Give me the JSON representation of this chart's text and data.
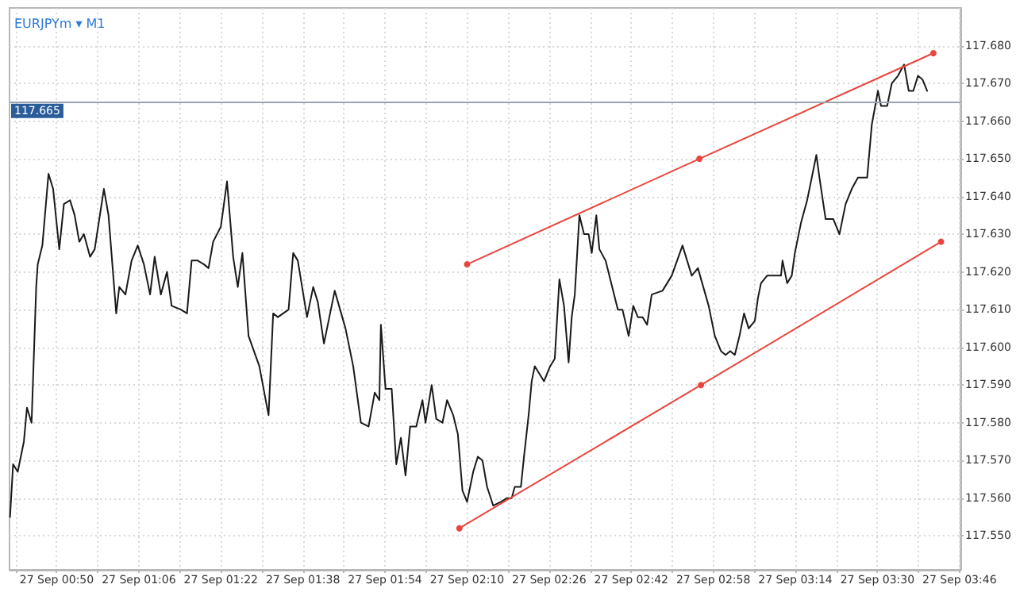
{
  "chart_data": {
    "type": "line",
    "title": "EURJPYm ▾ M1",
    "series": [
      {
        "color": "#1a1a1a",
        "marker": "none",
        "x": [
          "--09-27T00:40:54",
          "--09-27T00:41:30",
          "--09-27T00:42:24",
          "--09-27T00:43:36",
          "--09-27T00:44:12",
          "--09-27T00:45:06",
          "--09-27T00:46:00",
          "--09-27T00:46:18",
          "--09-27T00:47:12",
          "--09-27T00:48:24",
          "--09-27T00:49:18",
          "--09-27T00:50:30",
          "--09-27T00:51:24",
          "--09-27T00:52:36",
          "--09-27T00:53:30",
          "--09-27T00:54:24",
          "--09-27T00:55:18",
          "--09-27T00:56:30",
          "--09-27T00:57:24",
          "--09-27T00:59:12",
          "--09-27T01:00:06",
          "--09-27T01:01:36",
          "--09-27T01:02:12",
          "--09-27T01:03:24",
          "--09-27T01:04:36",
          "--09-27T01:05:48",
          "--09-27T01:07:00",
          "--09-27T01:08:12",
          "--09-27T01:09:06",
          "--09-27T01:10:18",
          "--09-27T01:11:30",
          "--09-27T01:12:24",
          "--09-27T01:14:12",
          "--09-27T01:15:24",
          "--09-27T01:16:18",
          "--09-27T01:17:30",
          "--09-27T01:18:42",
          "--09-27T01:19:36",
          "--09-27T01:20:30",
          "--09-27T01:22:00",
          "--09-27T01:23:12",
          "--09-27T01:24:24",
          "--09-27T01:25:18",
          "--09-27T01:26:12",
          "--09-27T01:27:24",
          "--09-27T01:29:30",
          "--09-27T01:31:18",
          "--09-27T01:32:12",
          "--09-27T01:33:06",
          "--09-27T01:35:12",
          "--09-27T01:36:06",
          "--09-27T01:37:00",
          "--09-27T01:38:48",
          "--09-27T01:40:00",
          "--09-27T01:40:54",
          "--09-27T01:42:06",
          "--09-27T01:44:12",
          "--09-27T01:46:18",
          "--09-27T01:47:48",
          "--09-27T01:49:18",
          "--09-27T01:50:48",
          "--09-27T01:52:00",
          "--09-27T01:52:54",
          "--09-27T01:53:12",
          "--09-27T01:54:06",
          "--09-27T01:55:18",
          "--09-27T01:56:12",
          "--09-27T01:57:06",
          "--09-27T01:58:00",
          "--09-27T01:58:54",
          "--09-27T02:00:06",
          "--09-27T02:01:18",
          "--09-27T02:01:54",
          "--09-27T02:03:06",
          "--09-27T02:04:00",
          "--09-27T02:05:12",
          "--09-27T02:06:06",
          "--09-27T02:07:18",
          "--09-27T02:08:12",
          "--09-27T02:09:06",
          "--09-27T02:10:00",
          "--09-27T02:11:12",
          "--09-27T02:12:06",
          "--09-27T02:13:00",
          "--09-27T02:13:54",
          "--09-27T02:15:06",
          "--09-27T02:16:36",
          "--09-27T02:17:48",
          "--09-27T02:18:42",
          "--09-27T02:19:18",
          "--09-27T02:20:30",
          "--09-27T02:21:06",
          "--09-27T02:22:00",
          "--09-27T02:22:36",
          "--09-27T02:23:12",
          "--09-27T02:25:00",
          "--09-27T02:26:12",
          "--09-27T02:27:06",
          "--09-27T02:28:00",
          "--09-27T02:28:54",
          "--09-27T02:29:48",
          "--09-27T02:30:24",
          "--09-27T02:31:00",
          "--09-27T02:31:54",
          "--09-27T02:32:48",
          "--09-27T02:33:42",
          "--09-27T02:34:18",
          "--09-27T02:35:12",
          "--09-27T02:35:48",
          "--09-27T02:37:00",
          "--09-27T02:39:24",
          "--09-27T02:40:18",
          "--09-27T02:41:30",
          "--09-27T02:42:24",
          "--09-27T02:43:18",
          "--09-27T02:44:12",
          "--09-27T02:45:06",
          "--09-27T02:46:00",
          "--09-27T02:48:06",
          "--09-27T02:49:54",
          "--09-27T02:52:00",
          "--09-27T02:53:48",
          "--09-27T02:55:00",
          "--09-27T02:57:06",
          "--09-27T02:58:18",
          "--09-27T02:59:30",
          "--09-27T03:00:24",
          "--09-27T03:01:18",
          "--09-27T03:02:12",
          "--09-27T03:03:06",
          "--09-27T03:04:00",
          "--09-27T03:04:54",
          "--09-27T03:06:06",
          "--09-27T03:06:42",
          "--09-27T03:07:18",
          "--09-27T03:08:30",
          "--09-27T03:10:00",
          "--09-27T03:11:12",
          "--09-27T03:11:30",
          "--09-27T03:12:24",
          "--09-27T03:13:18",
          "--09-27T03:13:54",
          "--09-27T03:15:06",
          "--09-27T03:16:18",
          "--09-27T03:18:06",
          "--09-27T03:18:42",
          "--09-27T03:19:54",
          "--09-27T03:21:24",
          "--09-27T03:22:36",
          "--09-27T03:23:48",
          "--09-27T03:25:00",
          "--09-27T03:26:12",
          "--09-27T03:28:00",
          "--09-27T03:28:54",
          "--09-27T03:30:06",
          "--09-27T03:30:42",
          "--09-27T03:31:54",
          "--09-27T03:32:48",
          "--09-27T03:34:00",
          "--09-27T03:35:12",
          "--09-27T03:36:06",
          "--09-27T03:37:00",
          "--09-27T03:37:54",
          "--09-27T03:38:48",
          "--09-27T03:39:42"
        ],
        "values": [
          117.555,
          117.569,
          117.567,
          117.575,
          117.584,
          117.58,
          117.616,
          117.622,
          117.627,
          117.646,
          117.642,
          117.626,
          117.638,
          117.639,
          117.635,
          117.628,
          117.63,
          117.624,
          117.626,
          117.642,
          117.635,
          117.609,
          117.616,
          117.614,
          117.623,
          117.627,
          117.622,
          117.614,
          117.624,
          117.614,
          117.62,
          117.611,
          117.61,
          117.609,
          117.623,
          117.623,
          117.622,
          117.621,
          117.628,
          117.632,
          117.644,
          117.624,
          117.616,
          117.625,
          117.603,
          117.595,
          117.582,
          117.609,
          117.608,
          117.61,
          117.625,
          117.623,
          117.608,
          117.616,
          117.612,
          117.601,
          117.615,
          117.605,
          117.595,
          117.58,
          117.579,
          117.588,
          117.586,
          117.606,
          117.589,
          117.589,
          117.569,
          117.576,
          117.566,
          117.579,
          117.579,
          117.586,
          117.58,
          117.59,
          117.581,
          117.58,
          117.586,
          117.582,
          117.577,
          117.562,
          117.559,
          117.567,
          117.571,
          117.57,
          117.563,
          117.558,
          117.559,
          117.56,
          117.56,
          117.563,
          117.563,
          117.571,
          117.582,
          117.591,
          117.595,
          117.591,
          117.595,
          117.597,
          117.618,
          117.611,
          117.596,
          117.608,
          117.614,
          117.635,
          117.63,
          117.63,
          117.625,
          117.635,
          117.626,
          117.623,
          117.61,
          117.61,
          117.603,
          117.611,
          117.608,
          117.608,
          117.606,
          117.614,
          117.615,
          117.619,
          117.627,
          117.619,
          117.621,
          117.611,
          117.603,
          117.599,
          117.598,
          117.599,
          117.598,
          117.603,
          117.609,
          117.605,
          117.607,
          117.613,
          117.617,
          117.619,
          117.619,
          117.619,
          117.623,
          117.617,
          117.619,
          117.625,
          117.633,
          117.639,
          117.651,
          117.645,
          117.634,
          117.634,
          117.63,
          117.638,
          117.642,
          117.645,
          117.645,
          117.659,
          117.668,
          117.664,
          117.664,
          117.67,
          117.672,
          117.675,
          117.668,
          117.668,
          117.672,
          117.671,
          117.668
        ]
      },
      {
        "color": "#e8453c",
        "marker": "circle",
        "x": [
          "--09-27T02:10:00",
          "--09-27T02:55:18",
          "--09-27T03:40:54"
        ],
        "values": [
          117.622,
          117.65,
          117.678
        ]
      },
      {
        "color": "#e8453c",
        "marker": "circle",
        "x": [
          "--09-27T02:08:30",
          "--09-27T02:55:36",
          "--09-27T03:42:24"
        ],
        "values": [
          117.552,
          117.59,
          117.628
        ]
      }
    ],
    "xlim": [
      "--09-27T00:40:48",
      "--09-27T03:46:12"
    ],
    "xticks": [
      {
        "value": "--09-27T00:42",
        "label": null
      },
      {
        "value": "--09-27T00:50",
        "label": "27 Sep 00:50"
      },
      {
        "value": "--09-27T00:58",
        "label": null
      },
      {
        "value": "--09-27T01:06",
        "label": "27 Sep 01:06"
      },
      {
        "value": "--09-27T01:14",
        "label": null
      },
      {
        "value": "--09-27T01:22",
        "label": "27 Sep 01:22"
      },
      {
        "value": "--09-27T01:30",
        "label": null
      },
      {
        "value": "--09-27T01:38",
        "label": "27 Sep 01:38"
      },
      {
        "value": "--09-27T01:46",
        "label": null
      },
      {
        "value": "--09-27T01:54",
        "label": "27 Sep 01:54"
      },
      {
        "value": "--09-27T02:02",
        "label": null
      },
      {
        "value": "--09-27T02:10",
        "label": "27 Sep 02:10"
      },
      {
        "value": "--09-27T02:18",
        "label": null
      },
      {
        "value": "--09-27T02:26",
        "label": "27 Sep 02:26"
      },
      {
        "value": "--09-27T02:34",
        "label": null
      },
      {
        "value": "--09-27T02:42",
        "label": "27 Sep 02:42"
      },
      {
        "value": "--09-27T02:50",
        "label": null
      },
      {
        "value": "--09-27T02:58",
        "label": "27 Sep 02:58"
      },
      {
        "value": "--09-27T03:06",
        "label": null
      },
      {
        "value": "--09-27T03:14",
        "label": "27 Sep 03:14"
      },
      {
        "value": "--09-27T03:22",
        "label": null
      },
      {
        "value": "--09-27T03:30",
        "label": "27 Sep 03:30"
      },
      {
        "value": "--09-27T03:38",
        "label": null
      },
      {
        "value": "--09-27T03:46",
        "label": "27 Sep 03:46"
      }
    ],
    "ylim": [
      117.541,
      117.69
    ],
    "yticks": [
      {
        "value": 117.55,
        "label": "117.550"
      },
      {
        "value": 117.56,
        "label": "117.560"
      },
      {
        "value": 117.57,
        "label": "117.570"
      },
      {
        "value": 117.58,
        "label": "117.580"
      },
      {
        "value": 117.59,
        "label": "117.590"
      },
      {
        "value": 117.6,
        "label": "117.600"
      },
      {
        "value": 117.61,
        "label": "117.610"
      },
      {
        "value": 117.62,
        "label": "117.620"
      },
      {
        "value": 117.63,
        "label": "117.630"
      },
      {
        "value": 117.64,
        "label": "117.640"
      },
      {
        "value": 117.65,
        "label": "117.650"
      },
      {
        "value": 117.66,
        "label": "117.660"
      },
      {
        "value": 117.67,
        "label": "117.670"
      },
      {
        "value": 117.68,
        "label": "117.680"
      }
    ],
    "ref_lines": [
      {
        "axis": "y",
        "value": 117.665,
        "label": "117.665",
        "color": "#9aa3b0"
      }
    ],
    "grid": true,
    "line_style": "solid"
  }
}
